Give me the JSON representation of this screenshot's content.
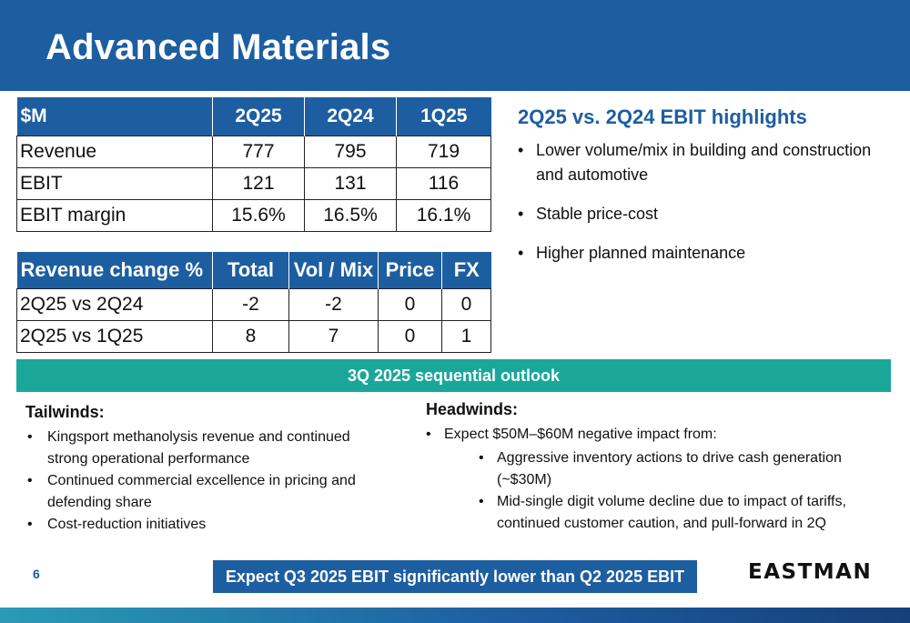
{
  "header": {
    "title": "Advanced Materials"
  },
  "financials": {
    "columns": [
      "$M",
      "2Q25",
      "2Q24",
      "1Q25"
    ],
    "rows": [
      [
        "Revenue",
        "777",
        "795",
        "719"
      ],
      [
        "EBIT",
        "121",
        "131",
        "116"
      ],
      [
        "EBIT margin",
        "15.6%",
        "16.5%",
        "16.1%"
      ]
    ]
  },
  "revenue_change": {
    "columns": [
      "Revenue change %",
      "Total",
      "Vol / Mix",
      "Price",
      "FX"
    ],
    "rows": [
      [
        "2Q25 vs 2Q24",
        "-2",
        "-2",
        "0",
        "0"
      ],
      [
        "2Q25 vs 1Q25",
        "8",
        "7",
        "0",
        "1"
      ]
    ]
  },
  "highlights": {
    "title": "2Q25 vs. 2Q24 EBIT highlights",
    "items": [
      "Lower volume/mix in building and construction and automotive",
      "Stable price-cost",
      "Higher planned maintenance"
    ]
  },
  "outlook": {
    "title": "3Q 2025 sequential outlook",
    "tailwinds": {
      "heading": "Tailwinds:",
      "items": [
        "Kingsport methanolysis revenue and continued strong operational performance",
        "Continued commercial excellence in pricing and defending share",
        "Cost-reduction initiatives"
      ]
    },
    "headwinds": {
      "heading": "Headwinds:",
      "intro": "Expect $50M–$60M negative impact from:",
      "items": [
        "Aggressive inventory actions to drive cash generation (~$30M)",
        "Mid-single digit volume decline due to impact of tariffs, continued customer caution, and pull-forward in 2Q"
      ]
    }
  },
  "footer": {
    "page_number": "6",
    "banner": "Expect Q3 2025 EBIT significantly lower than Q2 2025 EBIT",
    "logo_text": "EASTMAN"
  }
}
